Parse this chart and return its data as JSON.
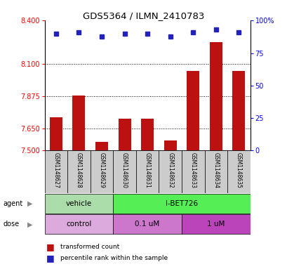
{
  "title": "GDS5364 / ILMN_2410783",
  "samples": [
    "GSM1148627",
    "GSM1148628",
    "GSM1148629",
    "GSM1148630",
    "GSM1148631",
    "GSM1148632",
    "GSM1148633",
    "GSM1148634",
    "GSM1148635"
  ],
  "transformed_counts": [
    7.73,
    7.88,
    7.56,
    7.72,
    7.72,
    7.57,
    8.05,
    8.25,
    8.05
  ],
  "percentile_ranks": [
    90,
    91,
    88,
    90,
    90,
    88,
    91,
    93,
    91
  ],
  "ylim_left": [
    7.5,
    8.4
  ],
  "ylim_right": [
    0,
    100
  ],
  "yticks_left": [
    7.5,
    7.65,
    7.875,
    8.1,
    8.4
  ],
  "yticks_right": [
    0,
    25,
    50,
    75,
    100
  ],
  "hlines": [
    8.1,
    7.875,
    7.65
  ],
  "bar_color": "#bb1111",
  "dot_color": "#2222bb",
  "bar_width": 0.55,
  "agent_labels": [
    "vehicle",
    "I-BET726"
  ],
  "agent_color_vehicle": "#aaddaa",
  "agent_color_ibet": "#55ee55",
  "dose_labels": [
    "control",
    "0.1 uM",
    "1 uM"
  ],
  "dose_color_control": "#ddaadd",
  "dose_color_01": "#cc77cc",
  "dose_color_1": "#bb44bb",
  "legend_bar_color": "#bb1111",
  "legend_dot_color": "#2222bb",
  "background_color": "#ffffff"
}
